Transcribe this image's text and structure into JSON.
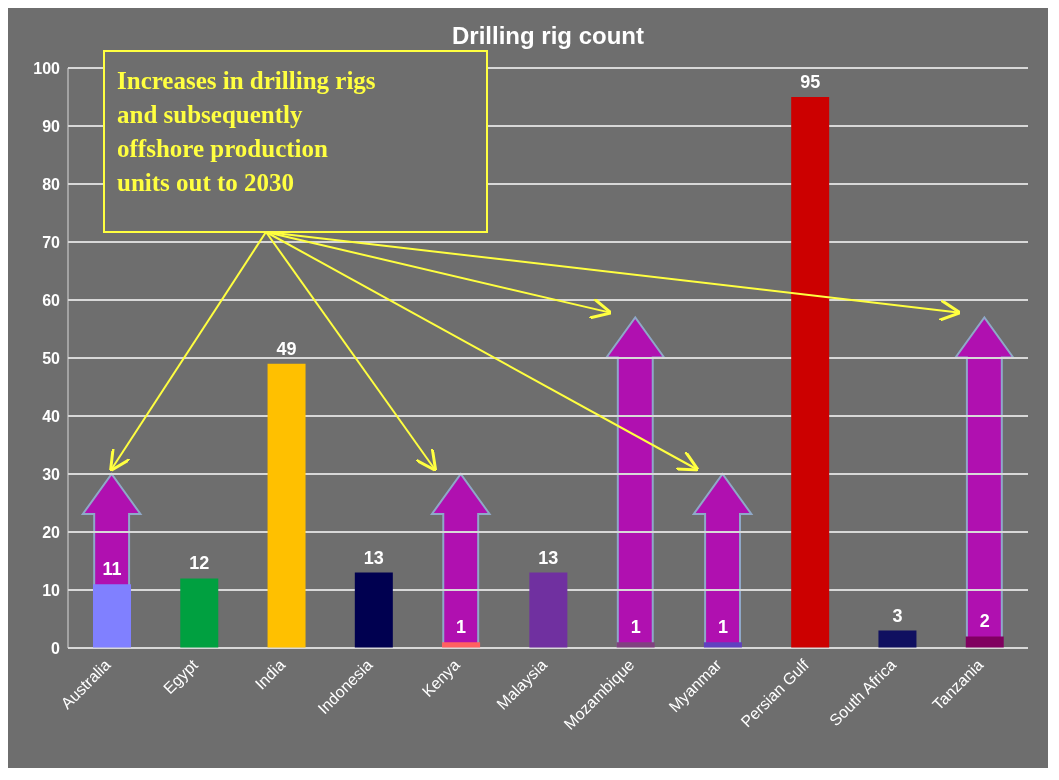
{
  "chart_data": {
    "type": "bar",
    "title": "Drilling rig count",
    "categories": [
      "Australia",
      "Egypt",
      "India",
      "Indonesia",
      "Kenya",
      "Malaysia",
      "Mozambique",
      "Myanmar",
      "Persian Gulf",
      "South Africa",
      "Tanzania"
    ],
    "values": [
      11,
      12,
      49,
      13,
      1,
      13,
      1,
      1,
      95,
      3,
      2
    ],
    "colors": [
      "#8080ff",
      "#00a040",
      "#ffc000",
      "#000050",
      "#ff6060",
      "#7030a0",
      "#804080",
      "#6040c0",
      "#cc0000",
      "#101060",
      "#800060"
    ],
    "ylim": [
      0,
      100
    ],
    "yticks": [
      0,
      10,
      20,
      30,
      40,
      50,
      60,
      70,
      80,
      90,
      100
    ],
    "grid": "y",
    "data_labels": true,
    "annotations": [
      "Increases in drilling rigs and subsequently offshore production units out to 2030"
    ]
  }
}
